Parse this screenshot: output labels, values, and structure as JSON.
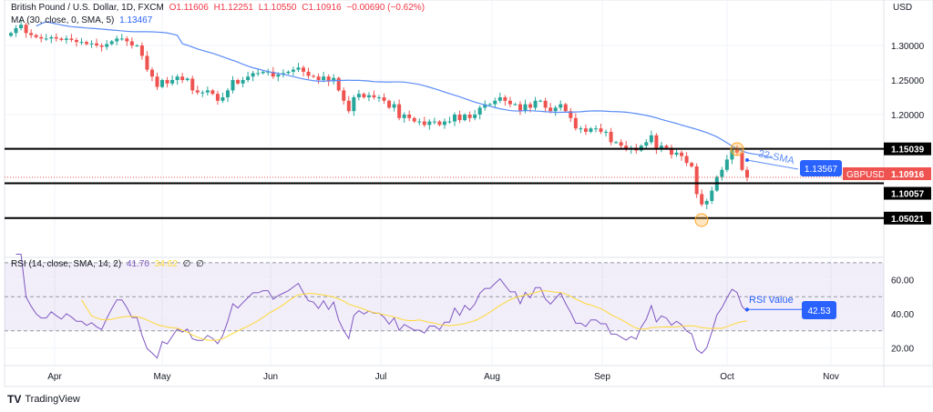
{
  "header": {
    "symbol_title": "British Pound / U.S. Dollar, 1D, FXCM",
    "open": "O1.11606",
    "high": "H1.12251",
    "low": "L1.10550",
    "close": "C1.10916",
    "change": "−0.00690 (−0.62%)",
    "ma_label": "MA (30, close, 0, SMA, 5)",
    "ma_value": "1.13467"
  },
  "rsi_legend": {
    "label": "RSI (14, close, SMA, 14, 2)",
    "rsi": "41.70",
    "sma": "34.62",
    "extra1": "∅",
    "extra2": "∅"
  },
  "currency": "USD",
  "colors": {
    "up": "#26a69a",
    "down": "#ef5350",
    "ma": "#5b8cf7",
    "rsi": "#7e57c2",
    "rsi_ma": "#fdd835",
    "accent": "#2962ff"
  },
  "annotations": {
    "sma_label": "22-SMA",
    "sma_value": "1.13567",
    "symbol_tag": "GBPUSD",
    "last_price": "1.10916",
    "rsi_label": "RSI Value",
    "rsi_value": "42.53"
  },
  "chart_data": {
    "type": "candlestick",
    "price_ticks": [
      "1.30000",
      "1.25000",
      "1.20000"
    ],
    "levels": [
      "1.15039",
      "1.10057",
      "1.05021"
    ],
    "rsi_ticks": [
      "60.00",
      "40.00",
      "20.00"
    ],
    "rsi_band": [
      30,
      70
    ],
    "x_ticks": [
      "Apr",
      "May",
      "Jun",
      "Jul",
      "Aug",
      "Sep",
      "Oct",
      "Nov"
    ],
    "closes": [
      1.318,
      1.325,
      1.33,
      1.318,
      1.315,
      1.312,
      1.31,
      1.31,
      1.312,
      1.31,
      1.308,
      1.31,
      1.308,
      1.305,
      1.305,
      1.302,
      1.303,
      1.3,
      1.298,
      1.302,
      1.306,
      1.31,
      1.31,
      1.306,
      1.3,
      1.3,
      1.285,
      1.265,
      1.255,
      1.24,
      1.25,
      1.245,
      1.25,
      1.255,
      1.25,
      1.252,
      1.235,
      1.232,
      1.232,
      1.235,
      1.23,
      1.22,
      1.225,
      1.235,
      1.25,
      1.245,
      1.25,
      1.255,
      1.26,
      1.26,
      1.262,
      1.262,
      1.255,
      1.258,
      1.26,
      1.262,
      1.265,
      1.268,
      1.262,
      1.256,
      1.255,
      1.25,
      1.255,
      1.248,
      1.253,
      1.235,
      1.22,
      1.205,
      1.225,
      1.23,
      1.225,
      1.228,
      1.225,
      1.225,
      1.22,
      1.21,
      1.215,
      1.195,
      1.2,
      1.195,
      1.19,
      1.19,
      1.185,
      1.19,
      1.19,
      1.185,
      1.19,
      1.19,
      1.2,
      1.192,
      1.2,
      1.195,
      1.2,
      1.21,
      1.215,
      1.215,
      1.22,
      1.225,
      1.22,
      1.215,
      1.215,
      1.205,
      1.215,
      1.21,
      1.22,
      1.22,
      1.21,
      1.205,
      1.21,
      1.215,
      1.205,
      1.195,
      1.18,
      1.18,
      1.175,
      1.18,
      1.18,
      1.175,
      1.175,
      1.16,
      1.16,
      1.155,
      1.15,
      1.152,
      1.148,
      1.155,
      1.16,
      1.17,
      1.15,
      1.155,
      1.152,
      1.142,
      1.145,
      1.14,
      1.13,
      1.125,
      1.085,
      1.07,
      1.075,
      1.09,
      1.11,
      1.12,
      1.135,
      1.15,
      1.145,
      1.12,
      1.10916
    ],
    "ma_period": 30,
    "ma_offset": 5,
    "rsi_period": 14,
    "rsi_ma_period": 14
  }
}
